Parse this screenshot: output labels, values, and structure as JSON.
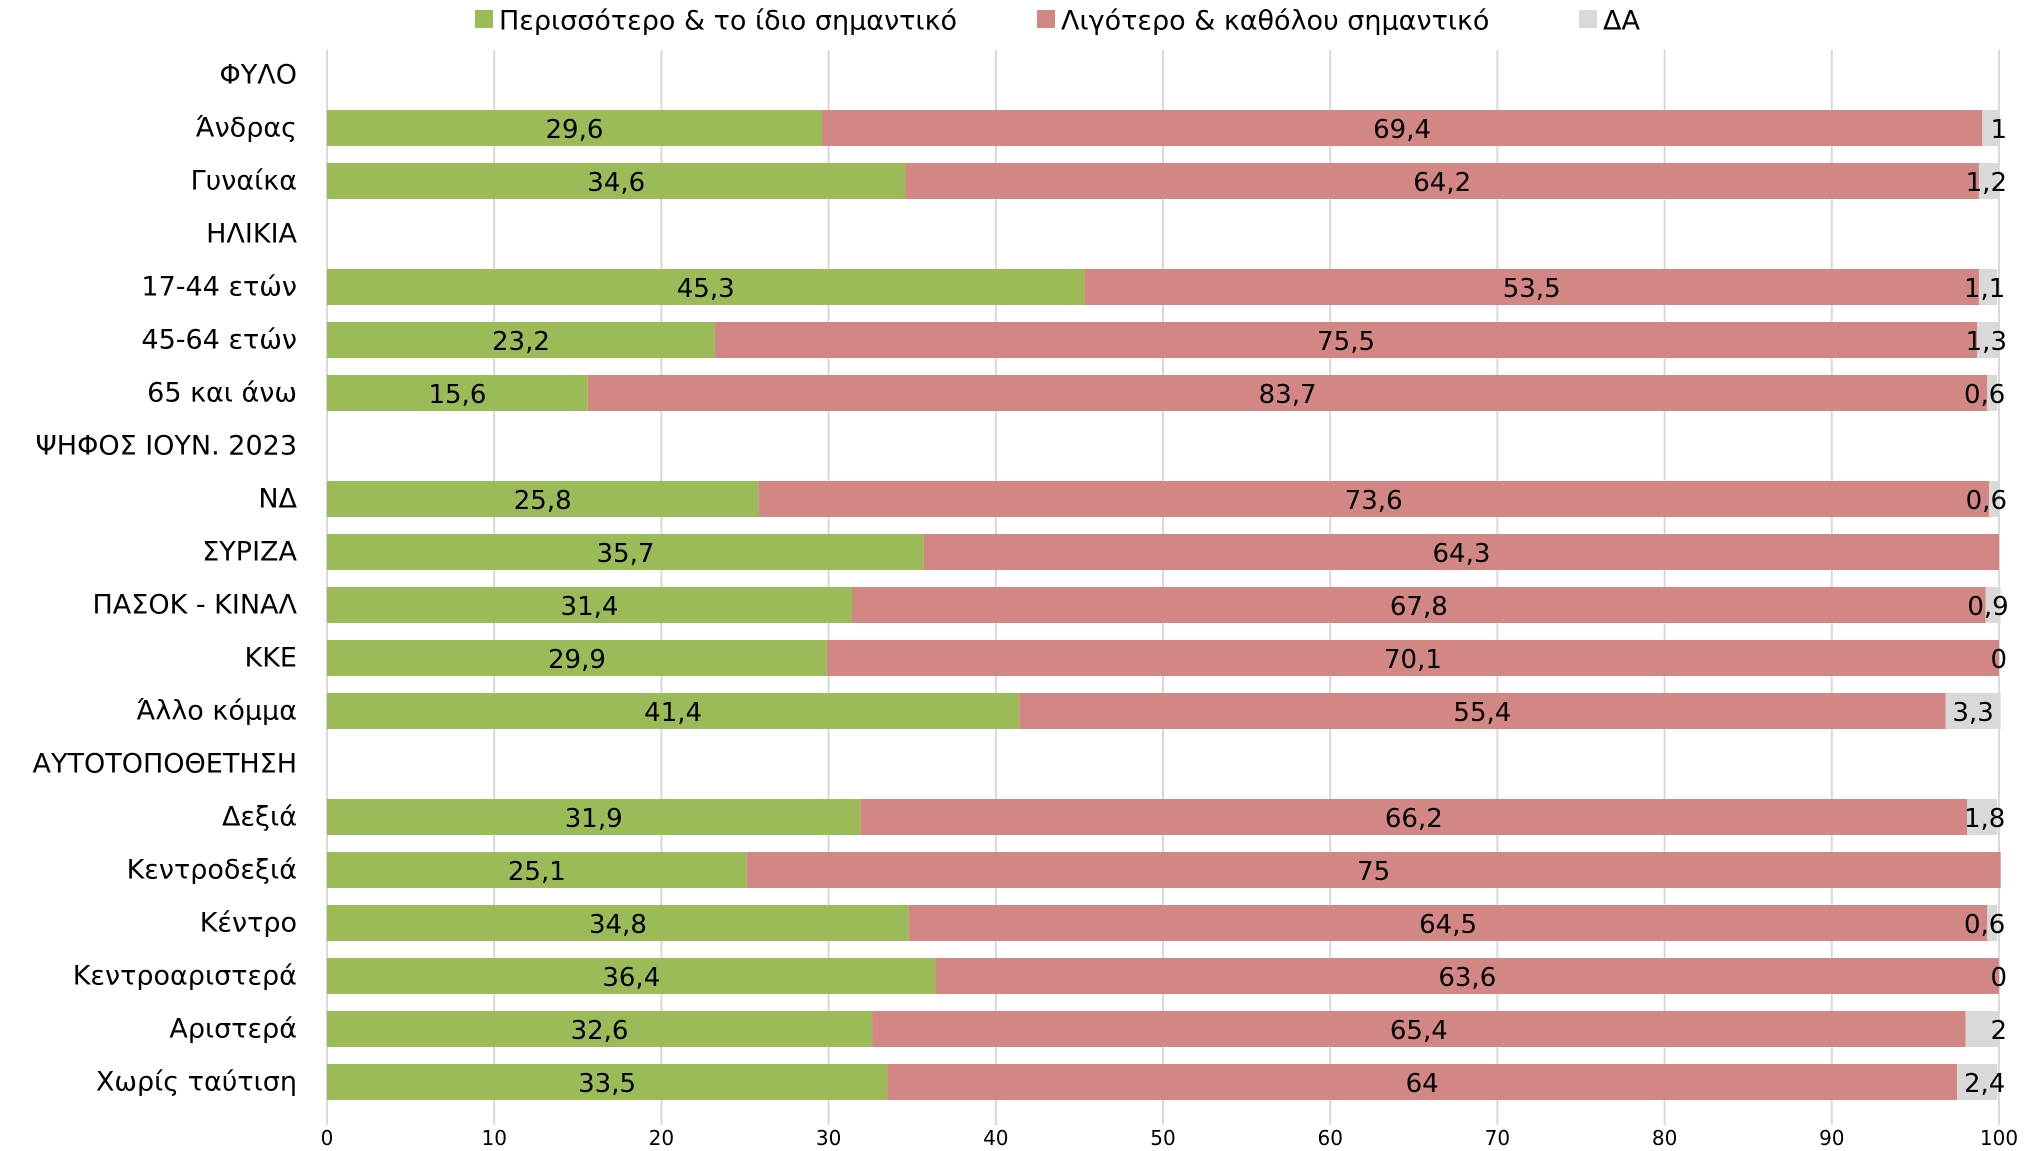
{
  "chart_data": {
    "type": "stacked_barh",
    "categories": [
      "ΦΥΛΟ",
      "Άνδρας",
      "Γυναίκα",
      "ΗΛΙΚΙΑ",
      "17-44 ετών",
      "45-64 ετών",
      "65 και άνω",
      "ΨΗΦΟΣ ΙΟΥΝ. 2023",
      "ΝΔ",
      "ΣΥΡΙΖΑ",
      "ΠΑΣΟΚ - ΚΙΝΑΛ",
      "ΚΚΕ",
      "Άλλο κόμμα",
      "ΑΥΤΟΤΟΠΟΘΕΤΗΣΗ",
      "Δεξιά",
      "Κεντροδεξιά",
      "Κέντρο",
      "Κεντροαριστερά",
      "Αριστερά",
      "Χωρίς ταύτιση"
    ],
    "series": [
      {
        "name": "Περισσότερο & το ίδιο σημαντικό",
        "color": "#9bbb59",
        "values": [
          null,
          29.6,
          34.6,
          null,
          45.3,
          23.2,
          15.6,
          null,
          25.8,
          35.7,
          31.4,
          29.9,
          41.4,
          null,
          31.9,
          25.1,
          34.8,
          36.4,
          32.6,
          33.5
        ],
        "value_labels": [
          null,
          "29,6",
          "34,6",
          null,
          "45,3",
          "23,2",
          "15,6",
          null,
          "25,8",
          "35,7",
          "31,4",
          "29,9",
          "41,4",
          null,
          "31,9",
          "25,1",
          "34,8",
          "36,4",
          "32,6",
          "33,5"
        ]
      },
      {
        "name": "Λιγότερο & καθόλου σημαντικό",
        "color": "#d38784",
        "values": [
          null,
          69.4,
          64.2,
          null,
          53.5,
          75.5,
          83.7,
          null,
          73.6,
          64.3,
          67.8,
          70.1,
          55.4,
          null,
          66.2,
          75,
          64.5,
          63.6,
          65.4,
          64
        ],
        "value_labels": [
          null,
          "69,4",
          "64,2",
          null,
          "53,5",
          "75,5",
          "83,7",
          null,
          "73,6",
          "64,3",
          "67,8",
          "70,1",
          "55,4",
          null,
          "66,2",
          "75",
          "64,5",
          "63,6",
          "65,4",
          "64"
        ]
      },
      {
        "name": "ΔΑ",
        "color": "#d9d9d9",
        "values": [
          null,
          1,
          1.2,
          null,
          1.1,
          1.3,
          0.6,
          null,
          0.6,
          null,
          0.9,
          0,
          3.3,
          null,
          1.8,
          null,
          0.6,
          0,
          2,
          2.4
        ],
        "value_labels": [
          null,
          "1",
          "1,2",
          null,
          "1,1",
          "1,3",
          "0,6",
          null,
          "0,6",
          null,
          "0,9",
          "0",
          "3,3",
          null,
          "1,8",
          null,
          "0,6",
          "0",
          "2",
          "2,4"
        ]
      }
    ],
    "xlim": [
      0,
      100
    ],
    "xticks": [
      0,
      10,
      20,
      30,
      40,
      50,
      60,
      70,
      80,
      90,
      100
    ],
    "grid": true,
    "legend": "top"
  }
}
